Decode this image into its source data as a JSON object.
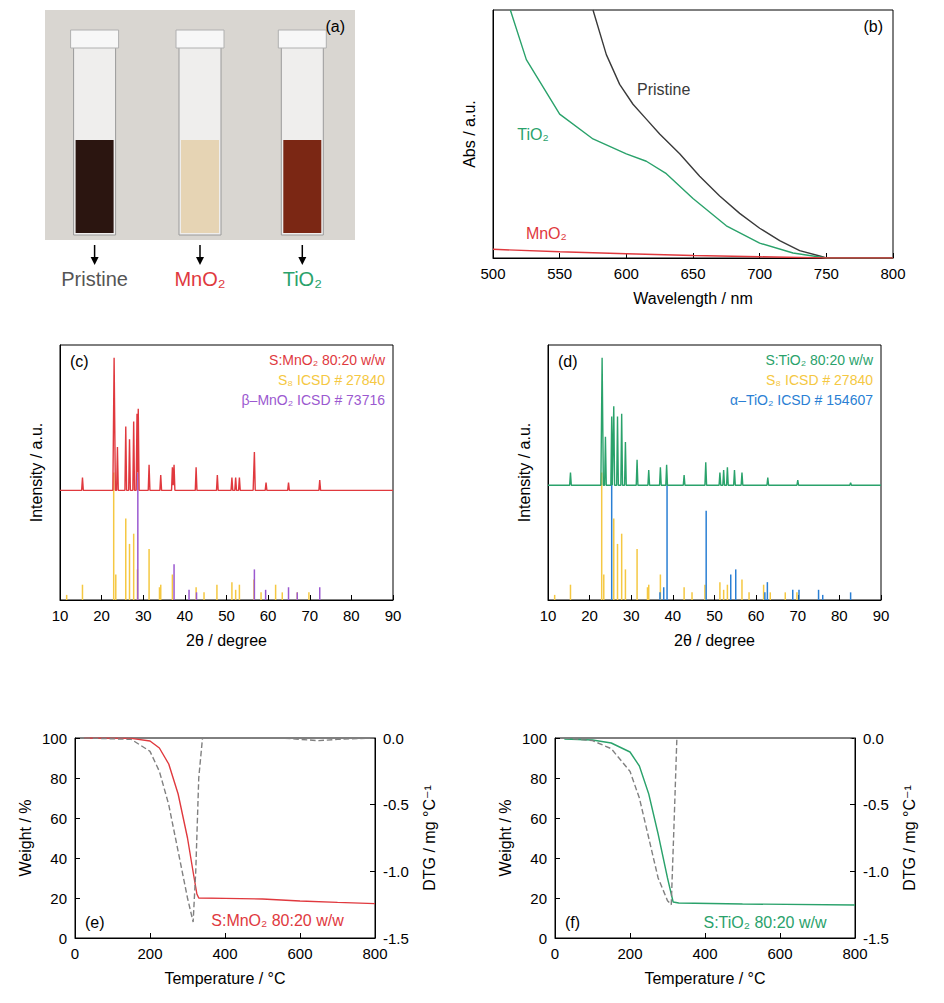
{
  "chart_data": [
    {
      "type": "photo",
      "letter": "(a)",
      "samples": [
        {
          "label": "Pristine",
          "color": "#555555",
          "liquid": "#2b1510"
        },
        {
          "label": "MnO₂",
          "color": "#e0393e",
          "liquid": "#e6d4b4"
        },
        {
          "label": "TiO₂",
          "color": "#2aa26b",
          "liquid": "#7b2714"
        }
      ]
    },
    {
      "type": "line",
      "letter": "(b)",
      "x_label": "Wavelength / nm",
      "y_label": "Abs / a.u.",
      "xlim": [
        500,
        800
      ],
      "xticks": [
        500,
        550,
        600,
        650,
        700,
        750,
        800
      ],
      "ylim": [
        0,
        1
      ],
      "tick_labels": "x",
      "series": [
        {
          "name": "Pristine",
          "color": "#3a3a3a",
          "label_x": 628,
          "label_y": 0.68,
          "x": [
            575,
            585,
            595,
            605,
            615,
            625,
            640,
            655,
            670,
            685,
            700,
            715,
            730,
            745,
            750,
            800
          ],
          "values": [
            1.0,
            0.82,
            0.7,
            0.62,
            0.56,
            0.5,
            0.42,
            0.33,
            0.25,
            0.18,
            0.12,
            0.07,
            0.03,
            0.008,
            0,
            0
          ]
        },
        {
          "name": "TiO₂",
          "color": "#2aa26b",
          "label_x": 530,
          "label_y": 0.5,
          "x": [
            513,
            525,
            550,
            575,
            600,
            615,
            630,
            650,
            675,
            700,
            725,
            750,
            800
          ],
          "values": [
            1.0,
            0.8,
            0.58,
            0.48,
            0.42,
            0.39,
            0.34,
            0.24,
            0.13,
            0.06,
            0.02,
            0,
            0
          ]
        },
        {
          "name": "MnO₂",
          "color": "#e0393e",
          "label_x": 540,
          "label_y": 0.1,
          "x": [
            500,
            550,
            600,
            650,
            700,
            750,
            800
          ],
          "values": [
            0.035,
            0.025,
            0.017,
            0.01,
            0.005,
            0,
            0
          ]
        }
      ]
    },
    {
      "type": "line",
      "letter": "(c)",
      "x_label": "2θ / degree",
      "y_label": "Intensity / a.u.",
      "xlim": [
        10,
        90
      ],
      "xticks": [
        10,
        20,
        30,
        40,
        50,
        60,
        70,
        80,
        90
      ],
      "ylim": [
        0,
        100
      ],
      "tick_labels": "x",
      "legend": "upper right",
      "series": [
        {
          "name": "S:MnO₂ 80:20 w/w",
          "color": "#e0393e",
          "x": [
            10,
            15.2,
            15.4,
            15.6,
            22.7,
            23.0,
            23.3,
            23.6,
            23.8,
            24.0,
            25.6,
            25.8,
            26.0,
            26.5,
            26.7,
            26.9,
            27.5,
            27.7,
            27.9,
            28.3,
            28.5,
            28.65,
            28.8,
            29.0,
            31.2,
            31.4,
            31.6,
            34.0,
            34.2,
            34.4,
            36.8,
            37.0,
            37.2,
            37.4,
            37.6,
            42.5,
            42.7,
            42.9,
            47.6,
            47.8,
            48.0,
            51.1,
            51.3,
            51.5,
            52.0,
            52.2,
            52.4,
            52.9,
            53.1,
            53.3,
            56.4,
            56.7,
            56.9,
            59.3,
            59.5,
            59.7,
            64.7,
            64.9,
            65.1,
            72.2,
            72.4,
            72.6,
            90
          ],
          "values": [
            43,
            43,
            48,
            43,
            43,
            95,
            43,
            43,
            60,
            43,
            43,
            68,
            43,
            43,
            63,
            43,
            43,
            70,
            43,
            43,
            73,
            50,
            75,
            43,
            43,
            53,
            43,
            43,
            49,
            43,
            43,
            52,
            45,
            53,
            43,
            43,
            52,
            43,
            43,
            49,
            43,
            43,
            48,
            43,
            43,
            48,
            43,
            43,
            48,
            43,
            43,
            58,
            43,
            43,
            46,
            43,
            43,
            46,
            43,
            43,
            47,
            43,
            43
          ]
        },
        {
          "name": "S₈ ICSD # 27840",
          "type": "stick",
          "color": "#f5c842",
          "x": [
            11.6,
            15.4,
            22.9,
            23.4,
            25.8,
            26.7,
            27.7,
            28.6,
            31.4,
            33.9,
            34.2,
            37.0,
            42.7,
            44.6,
            47.7,
            51.3,
            52.2,
            53.1,
            56.6,
            58.3,
            61.8,
            63.4,
            67.0,
            69.8
          ],
          "values": [
            2,
            6,
            50,
            10,
            32,
            22,
            26,
            12,
            20,
            5,
            6,
            10,
            5,
            3,
            6,
            7,
            4,
            6,
            8,
            3,
            6,
            3,
            3,
            3
          ]
        },
        {
          "name": "β–MnO₂ ICSD # 73716",
          "type": "stick",
          "color": "#9b59d0",
          "x": [
            28.7,
            37.4,
            41.0,
            42.8,
            56.7,
            59.4,
            64.9,
            67.0,
            72.4
          ],
          "values": [
            50,
            14,
            4,
            3,
            12,
            4,
            5,
            3,
            5
          ]
        }
      ]
    },
    {
      "type": "line",
      "letter": "(d)",
      "x_label": "2θ / degree",
      "y_label": "Intensity / a.u.",
      "xlim": [
        10,
        90
      ],
      "xticks": [
        10,
        20,
        30,
        40,
        50,
        60,
        70,
        80,
        90
      ],
      "ylim": [
        0,
        100
      ],
      "tick_labels": "x",
      "legend": "upper right",
      "series": [
        {
          "name": "S:TiO₂ 80:20 w/w",
          "color": "#2aa26b",
          "x": [
            10,
            15.2,
            15.4,
            15.6,
            22.7,
            23.0,
            23.3,
            23.6,
            23.8,
            24.0,
            25.1,
            25.3,
            25.45,
            25.6,
            25.8,
            26.0,
            26.5,
            26.7,
            26.9,
            27.5,
            27.7,
            27.9,
            28.4,
            28.6,
            28.8,
            31.2,
            31.4,
            31.6,
            34.0,
            34.2,
            34.4,
            36.8,
            37.0,
            37.2,
            38.3,
            38.5,
            38.7,
            42.5,
            42.7,
            42.9,
            47.7,
            47.9,
            48.1,
            51.1,
            51.3,
            51.5,
            52.0,
            52.2,
            52.4,
            52.9,
            53.1,
            53.3,
            54.6,
            54.8,
            55.0,
            56.4,
            56.6,
            56.8,
            62.6,
            62.8,
            63.0,
            69.8,
            70.0,
            70.2,
            82.5,
            82.7,
            82.9,
            90
          ],
          "values": [
            45,
            45,
            50,
            45,
            45,
            95,
            45,
            45,
            64,
            45,
            45,
            72,
            45,
            45,
            76,
            45,
            45,
            72,
            45,
            45,
            73,
            45,
            45,
            62,
            45,
            45,
            55,
            45,
            45,
            51,
            45,
            45,
            52,
            45,
            45,
            53,
            45,
            45,
            49,
            45,
            45,
            54,
            45,
            45,
            50,
            45,
            45,
            51,
            45,
            45,
            52,
            45,
            45,
            51,
            45,
            45,
            50,
            45,
            45,
            48,
            45,
            45,
            47,
            45,
            45,
            46,
            45,
            45
          ]
        },
        {
          "name": "S₈ ICSD # 27840",
          "type": "stick",
          "color": "#f5c842",
          "x": [
            11.6,
            15.4,
            22.9,
            23.4,
            25.8,
            26.7,
            27.7,
            28.6,
            31.4,
            33.9,
            34.2,
            37.0,
            42.7,
            44.6,
            47.7,
            51.3,
            52.2,
            53.1,
            56.6,
            58.3,
            61.8,
            63.4,
            67.0,
            69.8
          ],
          "values": [
            2,
            6,
            50,
            10,
            32,
            22,
            26,
            12,
            20,
            5,
            6,
            10,
            5,
            3,
            6,
            7,
            4,
            6,
            8,
            3,
            6,
            3,
            3,
            3
          ]
        },
        {
          "name": "α–TiO₂ ICSD # 154607",
          "type": "stick",
          "color": "#2a7fd4",
          "x": [
            25.3,
            36.9,
            37.8,
            38.6,
            48.0,
            53.9,
            55.1,
            62.1,
            62.7,
            68.8,
            70.3,
            75.0,
            76.0,
            82.7
          ],
          "values": [
            50,
            3,
            5,
            47,
            35,
            10,
            12,
            3,
            7,
            4,
            4,
            4,
            2,
            3
          ]
        }
      ]
    },
    {
      "type": "line",
      "letter": "(e)",
      "x_label": "Temperature / °C",
      "y_label": "Weight / %",
      "y2_label": "DTG / mg °C⁻¹",
      "xlim": [
        0,
        800
      ],
      "xticks": [
        0,
        200,
        400,
        600,
        800
      ],
      "ylim": [
        0,
        100
      ],
      "yticks": [
        0,
        20,
        40,
        60,
        80,
        100
      ],
      "y2lim": [
        -1.5,
        0
      ],
      "y2ticks": [
        {
          "value": 0,
          "label": "0.0"
        },
        -0.5,
        {
          "value": -1,
          "label": "-1.0"
        },
        -1.5
      ],
      "series": [
        {
          "name": "S:MnO₂ 80:20 w/w",
          "color": "#e0393e",
          "label_x": 540,
          "label_y": 9,
          "x": [
            25,
            150,
            200,
            225,
            250,
            275,
            300,
            315,
            325,
            330,
            400,
            500,
            600,
            700,
            800
          ],
          "values": [
            100,
            99.8,
            98.5,
            95,
            87,
            72,
            50,
            33,
            22,
            20,
            19.8,
            19.5,
            18.5,
            17.8,
            17.2
          ]
        },
        {
          "axis": "y2",
          "color": "#808080",
          "line_style": "dashed",
          "x": [
            25,
            150,
            200,
            225,
            250,
            275,
            300,
            315,
            322,
            330,
            340,
            550,
            600,
            650,
            700,
            800
          ],
          "values": [
            0,
            -0.01,
            -0.1,
            -0.25,
            -0.5,
            -0.85,
            -1.2,
            -1.38,
            -1.0,
            -0.3,
            0,
            0,
            -0.01,
            -0.02,
            -0.01,
            0
          ]
        }
      ]
    },
    {
      "type": "line",
      "letter": "(f)",
      "x_label": "Temperature / °C",
      "y_label": "Weight / %",
      "y2_label": "DTG / mg °C⁻¹",
      "xlim": [
        0,
        800
      ],
      "xticks": [
        0,
        200,
        400,
        600,
        800
      ],
      "ylim": [
        0,
        100
      ],
      "yticks": [
        0,
        20,
        40,
        60,
        80,
        100
      ],
      "y2lim": [
        -1.5,
        0
      ],
      "y2ticks": [
        {
          "value": 0,
          "label": "0.0"
        },
        -0.5,
        {
          "value": -1,
          "label": "-1.0"
        },
        -1.5
      ],
      "series": [
        {
          "name": "S:TiO₂ 80:20 w/w",
          "color": "#2aa26b",
          "label_x": 560,
          "label_y": 8,
          "x": [
            25,
            100,
            150,
            200,
            225,
            250,
            275,
            300,
            315,
            330,
            500,
            800
          ],
          "values": [
            99.5,
            99,
            97.5,
            93,
            86,
            72,
            52,
            30,
            18,
            17.5,
            17,
            16.5
          ]
        },
        {
          "axis": "y2",
          "color": "#808080",
          "line_style": "dashed",
          "x": [
            25,
            100,
            150,
            200,
            225,
            250,
            275,
            300,
            310,
            318,
            325,
            800
          ],
          "values": [
            0,
            -0.02,
            -0.08,
            -0.25,
            -0.45,
            -0.75,
            -1.05,
            -1.22,
            -1.25,
            -0.6,
            0,
            0
          ]
        }
      ]
    }
  ]
}
